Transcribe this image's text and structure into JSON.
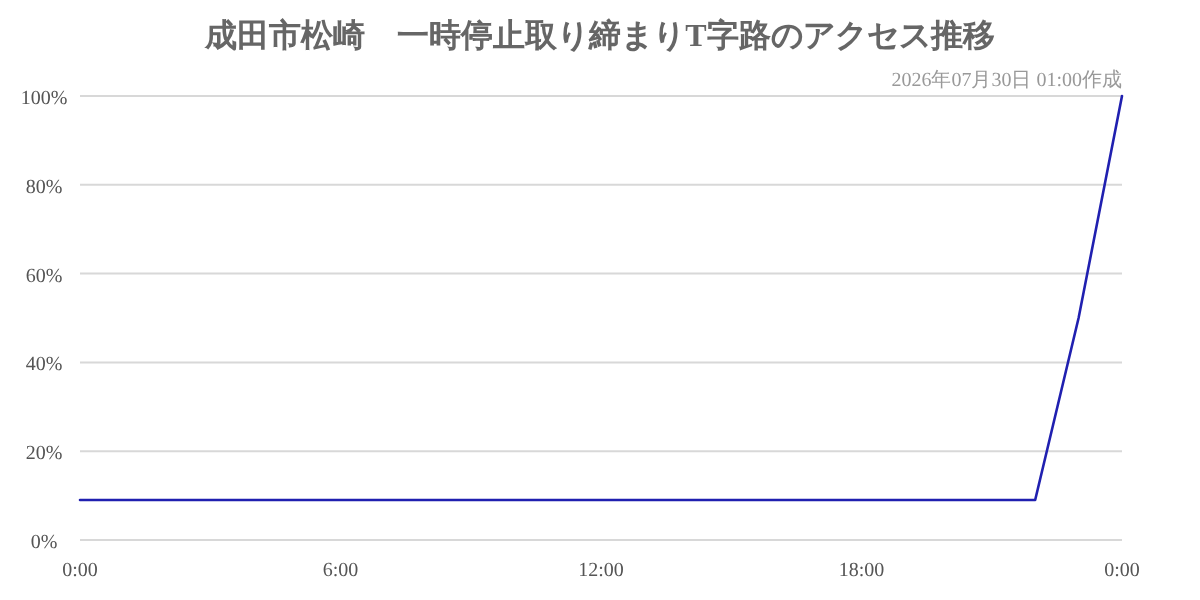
{
  "chart_data": {
    "type": "line",
    "title": "成田市松崎　一時停止取り締まりT字路のアクセス推移",
    "subtitle": "2026年07月30日 01:00作成",
    "x": [
      0,
      1,
      2,
      3,
      4,
      5,
      6,
      7,
      8,
      9,
      10,
      11,
      12,
      13,
      14,
      15,
      16,
      17,
      18,
      19,
      20,
      21,
      22,
      23,
      24
    ],
    "series": [
      {
        "color": "#2020b0",
        "values": [
          9,
          9,
          9,
          9,
          9,
          9,
          9,
          9,
          9,
          9,
          9,
          9,
          9,
          9,
          9,
          9,
          9,
          9,
          9,
          9,
          9,
          9,
          9,
          50,
          100
        ]
      }
    ],
    "xlim": [
      0,
      24
    ],
    "xticks": [
      {
        "value": 0,
        "label": "0:00"
      },
      {
        "value": 6,
        "label": "6:00"
      },
      {
        "value": 12,
        "label": "12:00"
      },
      {
        "value": 18,
        "label": "18:00"
      },
      {
        "value": 24,
        "label": "0:00"
      }
    ],
    "ylim": [
      0,
      100
    ],
    "yticks": [
      {
        "value": 0,
        "label": "0%"
      },
      {
        "value": 20,
        "label": "20%"
      },
      {
        "value": 40,
        "label": "40%"
      },
      {
        "value": 60,
        "label": "60%"
      },
      {
        "value": 80,
        "label": "80%"
      },
      {
        "value": 100,
        "label": "100%"
      }
    ],
    "grid": "y"
  }
}
